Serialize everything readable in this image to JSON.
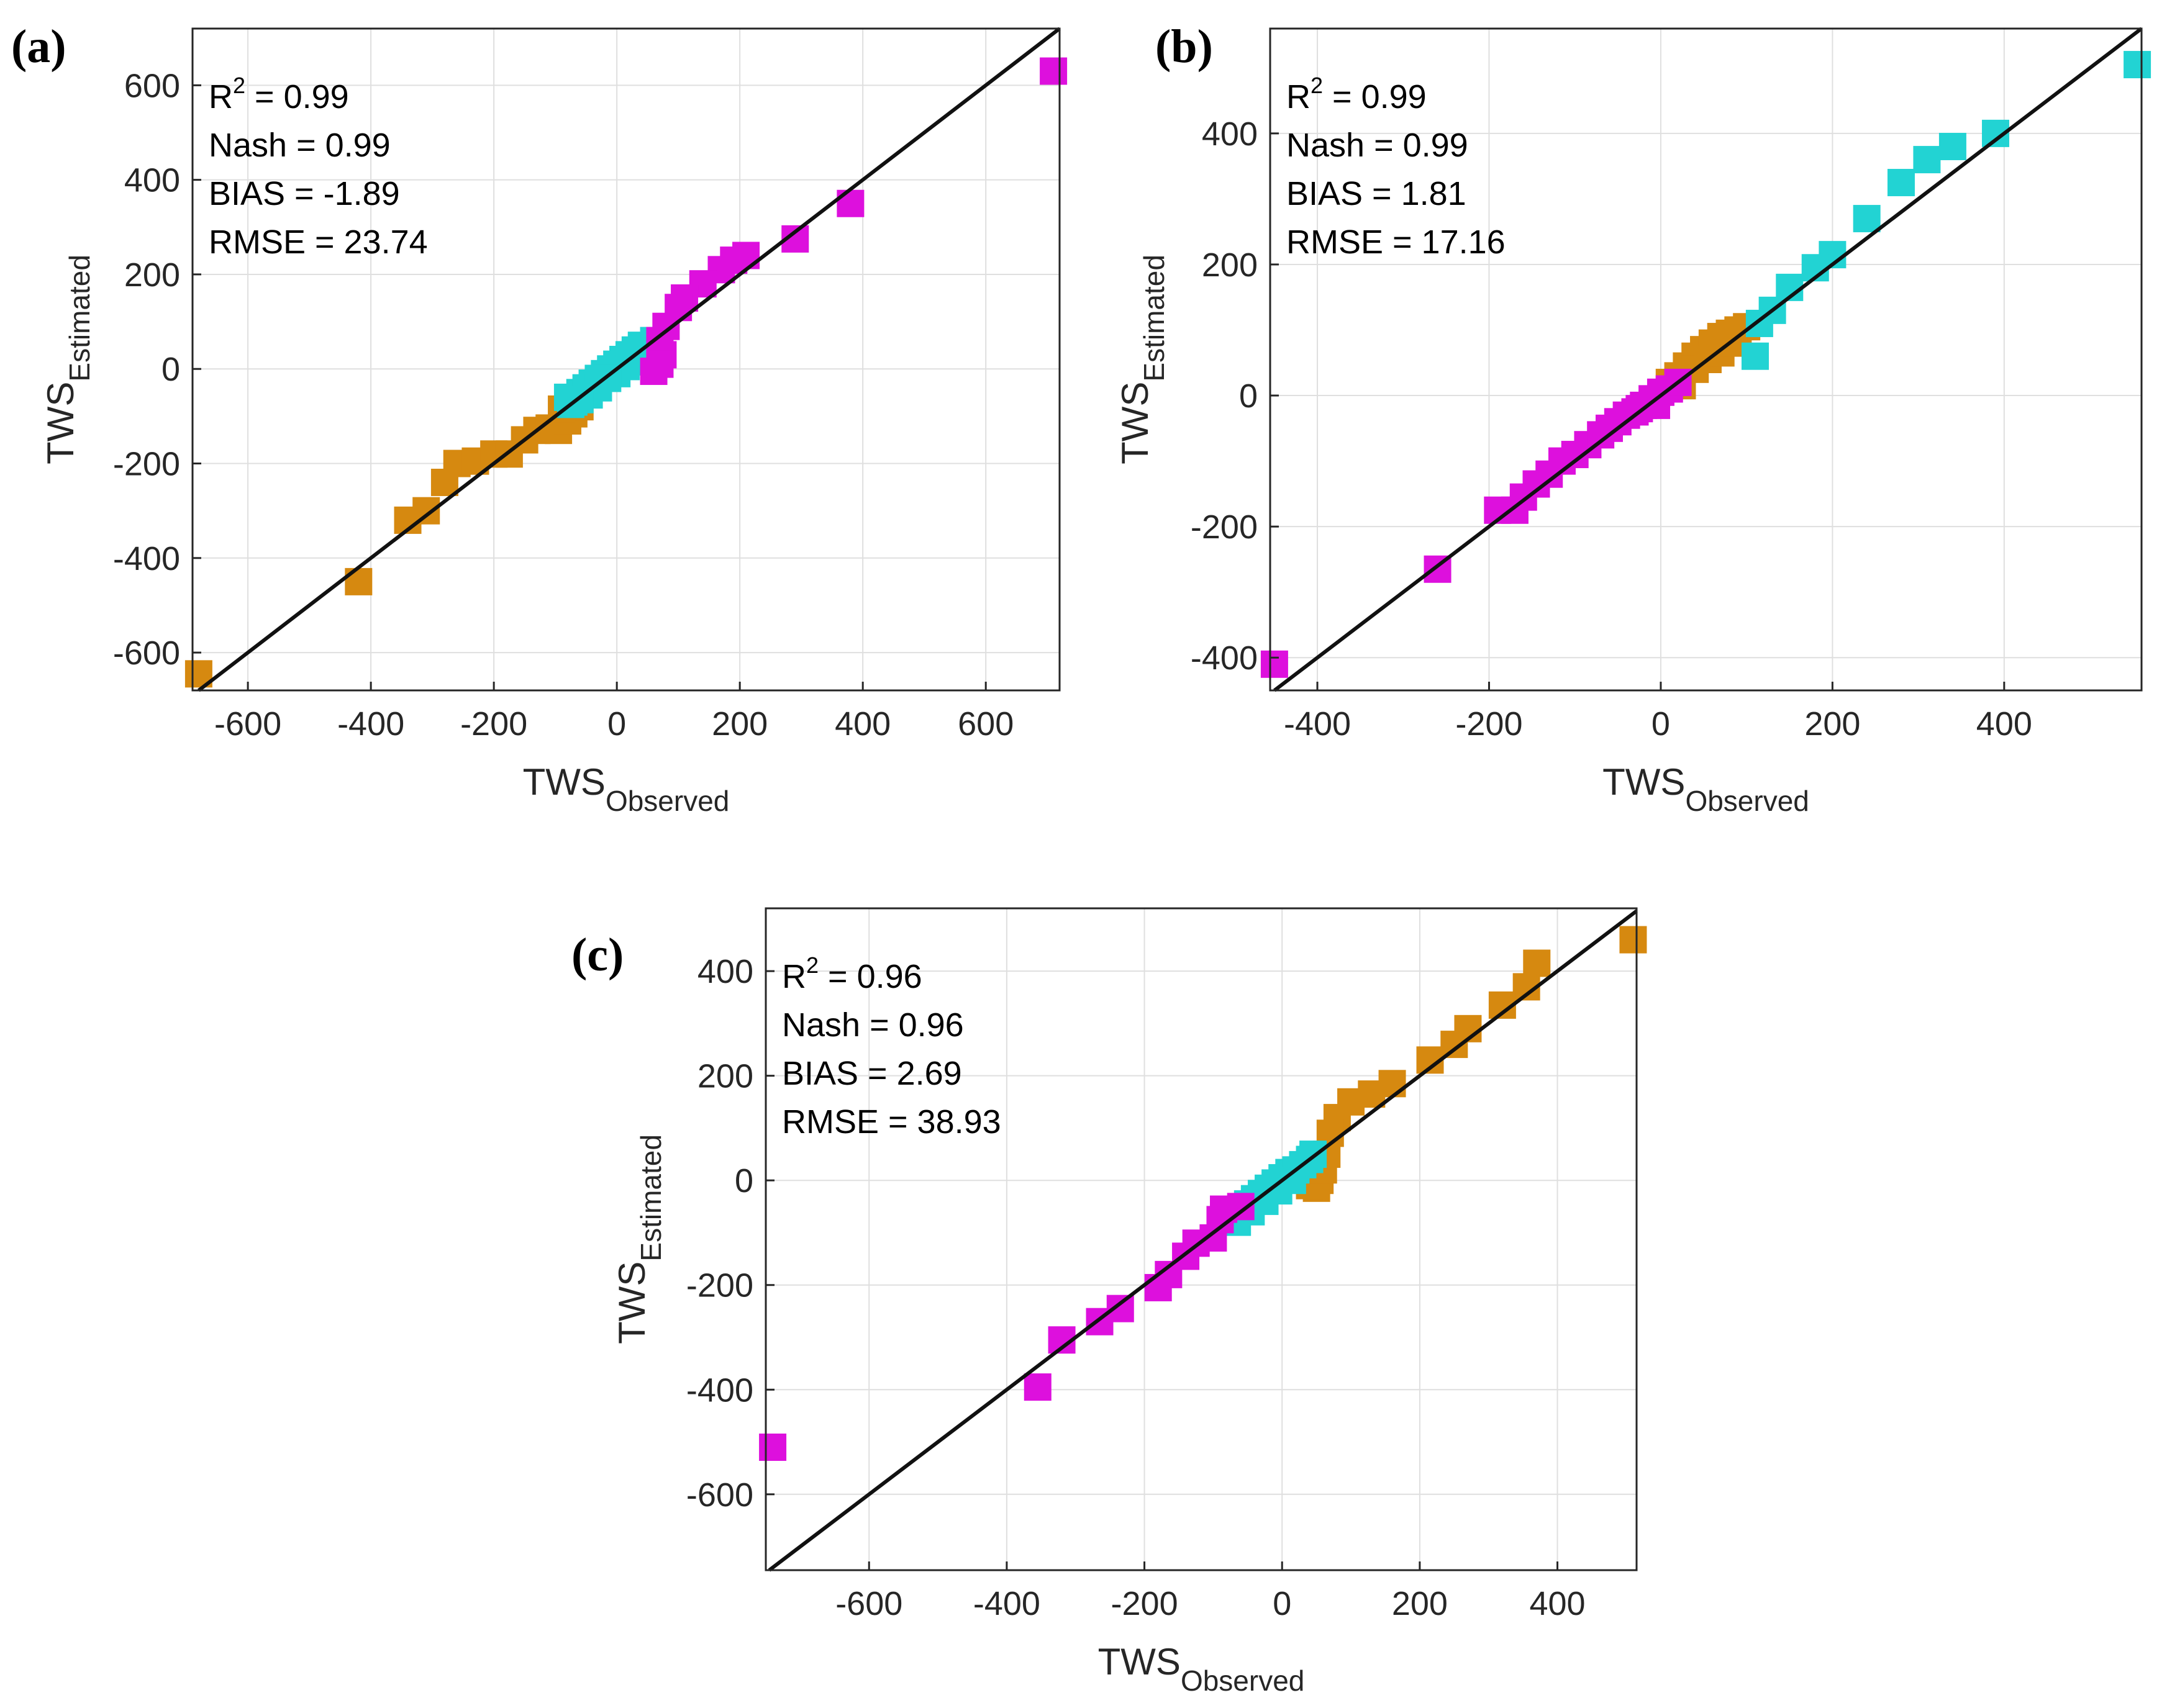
{
  "colors": {
    "orange": "#d68910",
    "cyan": "#22d3d3",
    "magenta": "#dd10dd",
    "line": "#111111"
  },
  "chart_data": [
    {
      "type": "scatter",
      "panel_label": "(a)",
      "xlabel": "TWS",
      "xlabel_sub": "Observed",
      "ylabel": "TWS",
      "ylabel_sub": "Estimated",
      "xlim": [
        -690,
        720
      ],
      "ylim": [
        -680,
        720
      ],
      "xticks": [
        -600,
        -400,
        -200,
        0,
        200,
        400,
        600
      ],
      "yticks": [
        -600,
        -400,
        -200,
        0,
        200,
        400,
        600
      ],
      "xtick_labels": [
        "-600",
        "-400",
        "-200",
        "0",
        "200",
        "400",
        "600"
      ],
      "ytick_labels": [
        "-600",
        "-400",
        "-200",
        "0",
        "200",
        "400",
        "600"
      ],
      "stats": {
        "r2_label": "R",
        "r2_sup": "2",
        "r2_value": " = 0.99",
        "nash": "Nash = 0.99",
        "bias": "BIAS = -1.89",
        "rmse": "RMSE = 23.74"
      },
      "series": [
        {
          "name": "orange",
          "color": "#d68910",
          "points": [
            [
              -680,
              -645
            ],
            [
              -420,
              -450
            ],
            [
              -340,
              -320
            ],
            [
              -310,
              -300
            ],
            [
              -280,
              -240
            ],
            [
              -260,
              -200
            ],
            [
              -230,
              -195
            ],
            [
              -200,
              -180
            ],
            [
              -175,
              -180
            ],
            [
              -150,
              -150
            ],
            [
              -130,
              -130
            ],
            [
              -110,
              -125
            ],
            [
              -95,
              -130
            ],
            [
              -80,
              -110
            ],
            [
              -70,
              -95
            ],
            [
              -60,
              -80
            ],
            [
              -90,
              -85
            ]
          ]
        },
        {
          "name": "cyan",
          "color": "#22d3d3",
          "points": [
            [
              -80,
              -60
            ],
            [
              -70,
              -70
            ],
            [
              -60,
              -50
            ],
            [
              -50,
              -40
            ],
            [
              -40,
              -30
            ],
            [
              -30,
              -20
            ],
            [
              -20,
              -10
            ],
            [
              -10,
              0
            ],
            [
              0,
              10
            ],
            [
              10,
              20
            ],
            [
              20,
              30
            ],
            [
              30,
              40
            ],
            [
              40,
              50
            ],
            [
              50,
              45
            ],
            [
              60,
              60
            ],
            [
              55,
              30
            ],
            [
              45,
              20
            ],
            [
              30,
              15
            ],
            [
              15,
              5
            ],
            [
              0,
              -10
            ],
            [
              -15,
              -20
            ],
            [
              -30,
              -40
            ],
            [
              -45,
              -55
            ],
            [
              -60,
              -65
            ],
            [
              -75,
              -75
            ]
          ]
        },
        {
          "name": "magenta",
          "color": "#dd10dd",
          "points": [
            [
              710,
              630
            ],
            [
              380,
              350
            ],
            [
              290,
              275
            ],
            [
              210,
              240
            ],
            [
              190,
              230
            ],
            [
              170,
              210
            ],
            [
              140,
              180
            ],
            [
              110,
              150
            ],
            [
              100,
              130
            ],
            [
              80,
              90
            ],
            [
              70,
              60
            ],
            [
              75,
              30
            ],
            [
              60,
              -5
            ],
            [
              70,
              10
            ]
          ]
        }
      ]
    },
    {
      "type": "scatter",
      "panel_label": "(b)",
      "xlabel": "TWS",
      "xlabel_sub": "Observed",
      "ylabel": "TWS",
      "ylabel_sub": "Estimated",
      "xlim": [
        -455,
        560
      ],
      "ylim": [
        -450,
        560
      ],
      "xticks": [
        -400,
        -200,
        0,
        200,
        400
      ],
      "yticks": [
        -400,
        -200,
        0,
        200,
        400
      ],
      "xtick_labels": [
        "-400",
        "-200",
        "0",
        "200",
        "400"
      ],
      "ytick_labels": [
        "-400",
        "-200",
        "0",
        "200",
        "400"
      ],
      "stats": {
        "r2_label": "R",
        "r2_sup": "2",
        "r2_value": " = 0.99",
        "nash": "Nash = 0.99",
        "bias": "BIAS = 1.81",
        "rmse": "RMSE = 17.16"
      },
      "series": [
        {
          "name": "orange",
          "color": "#d68910",
          "points": [
            [
              10,
              20
            ],
            [
              20,
              30
            ],
            [
              30,
              45
            ],
            [
              40,
              60
            ],
            [
              50,
              70
            ],
            [
              60,
              80
            ],
            [
              70,
              90
            ],
            [
              80,
              95
            ],
            [
              90,
              100
            ],
            [
              100,
              105
            ],
            [
              40,
              40
            ],
            [
              55,
              55
            ],
            [
              70,
              65
            ],
            [
              85,
              80
            ],
            [
              25,
              15
            ]
          ]
        },
        {
          "name": "cyan",
          "color": "#22d3d3",
          "points": [
            [
              555,
              505
            ],
            [
              390,
              400
            ],
            [
              340,
              380
            ],
            [
              310,
              360
            ],
            [
              280,
              325
            ],
            [
              240,
              270
            ],
            [
              200,
              215
            ],
            [
              180,
              195
            ],
            [
              150,
              165
            ],
            [
              130,
              130
            ],
            [
              110,
              60
            ],
            [
              115,
              110
            ]
          ]
        },
        {
          "name": "magenta",
          "color": "#dd10dd",
          "points": [
            [
              -450,
              -410
            ],
            [
              -260,
              -265
            ],
            [
              -190,
              -175
            ],
            [
              -170,
              -175
            ],
            [
              -160,
              -155
            ],
            [
              -145,
              -135
            ],
            [
              -130,
              -120
            ],
            [
              -115,
              -100
            ],
            [
              -100,
              -90
            ],
            [
              -85,
              -75
            ],
            [
              -70,
              -60
            ],
            [
              -60,
              -50
            ],
            [
              -50,
              -40
            ],
            [
              -40,
              -30
            ],
            [
              -30,
              -25
            ],
            [
              -20,
              -15
            ],
            [
              -10,
              -5
            ],
            [
              0,
              5
            ],
            [
              10,
              10
            ],
            [
              20,
              20
            ],
            [
              -5,
              -15
            ],
            [
              -25,
              -20
            ]
          ]
        }
      ]
    },
    {
      "type": "scatter",
      "panel_label": "(c)",
      "xlabel": "TWS",
      "xlabel_sub": "Observed",
      "ylabel": "TWS",
      "ylabel_sub": "Estimated",
      "xlim": [
        -750,
        515
      ],
      "ylim": [
        -745,
        520
      ],
      "xticks": [
        -600,
        -400,
        -200,
        0,
        200,
        400
      ],
      "yticks": [
        -600,
        -400,
        -200,
        0,
        200,
        400
      ],
      "xtick_labels": [
        "-600",
        "-400",
        "-200",
        "0",
        "200",
        "400"
      ],
      "ytick_labels": [
        "-600",
        "-400",
        "-200",
        "0",
        "200",
        "400"
      ],
      "stats": {
        "r2_label": "R",
        "r2_sup": "2",
        "r2_value": " = 0.96",
        "nash": "Nash = 0.96",
        "bias": "BIAS = 2.69",
        "rmse": "RMSE = 38.93"
      },
      "series": [
        {
          "name": "orange",
          "color": "#d68910",
          "points": [
            [
              510,
              460
            ],
            [
              370,
              415
            ],
            [
              355,
              370
            ],
            [
              320,
              335
            ],
            [
              270,
              290
            ],
            [
              250,
              260
            ],
            [
              215,
              230
            ],
            [
              160,
              185
            ],
            [
              130,
              165
            ],
            [
              100,
              150
            ],
            [
              80,
              120
            ],
            [
              70,
              90
            ],
            [
              65,
              50
            ],
            [
              55,
              0
            ],
            [
              50,
              -15
            ],
            [
              40,
              -10
            ],
            [
              60,
              20
            ]
          ]
        },
        {
          "name": "cyan",
          "color": "#22d3d3",
          "points": [
            [
              -80,
              -75
            ],
            [
              -70,
              -65
            ],
            [
              -60,
              -55
            ],
            [
              -50,
              -45
            ],
            [
              -40,
              -35
            ],
            [
              -30,
              -25
            ],
            [
              -20,
              -15
            ],
            [
              -10,
              -5
            ],
            [
              0,
              5
            ],
            [
              10,
              15
            ],
            [
              20,
              20
            ],
            [
              30,
              30
            ],
            [
              40,
              40
            ],
            [
              45,
              50
            ],
            [
              -65,
              -80
            ],
            [
              -45,
              -60
            ],
            [
              -25,
              -40
            ],
            [
              -5,
              -20
            ],
            [
              15,
              0
            ]
          ]
        },
        {
          "name": "magenta",
          "color": "#dd10dd",
          "points": [
            [
              -740,
              -510
            ],
            [
              -355,
              -395
            ],
            [
              -320,
              -305
            ],
            [
              -265,
              -270
            ],
            [
              -235,
              -245
            ],
            [
              -180,
              -205
            ],
            [
              -165,
              -180
            ],
            [
              -140,
              -145
            ],
            [
              -125,
              -120
            ],
            [
              -100,
              -110
            ],
            [
              -90,
              -75
            ],
            [
              -85,
              -55
            ],
            [
              -60,
              -50
            ]
          ]
        }
      ]
    }
  ]
}
